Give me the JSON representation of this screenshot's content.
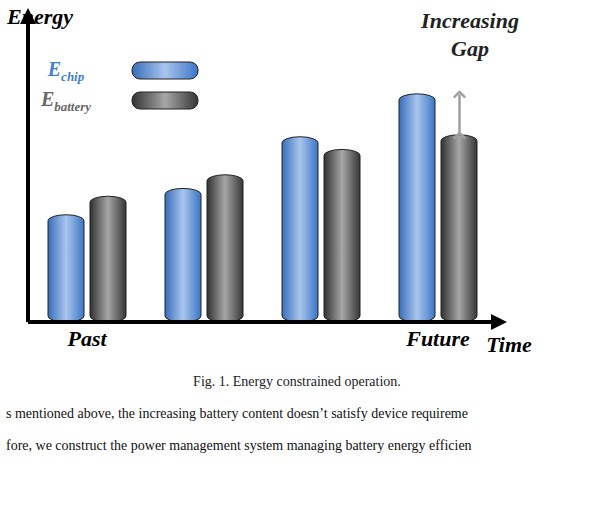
{
  "chart_data": {
    "type": "bar",
    "x_label": "Time",
    "y_label": "Energy",
    "categories": [
      "Past",
      null,
      null,
      "Future"
    ],
    "series": [
      {
        "name": "Echip",
        "color": "#3f7fd6",
        "values": [
          110,
          137,
          190,
          234
        ]
      },
      {
        "name": "Ebattery",
        "color": "#3a3a3a",
        "values": [
          129,
          151,
          177,
          192
        ]
      }
    ],
    "ylim": [
      0,
      320
    ],
    "tick_labels": "x",
    "legend": "top-left",
    "annotations": [
      "Increasing Gap"
    ]
  },
  "caption": "Fig. 1. Energy constrained operation.",
  "text": [
    "s mentioned above, the increasing battery content doesn’t satisfy device requireme",
    "fore, we construct the power management system managing battery energy efficien"
  ]
}
